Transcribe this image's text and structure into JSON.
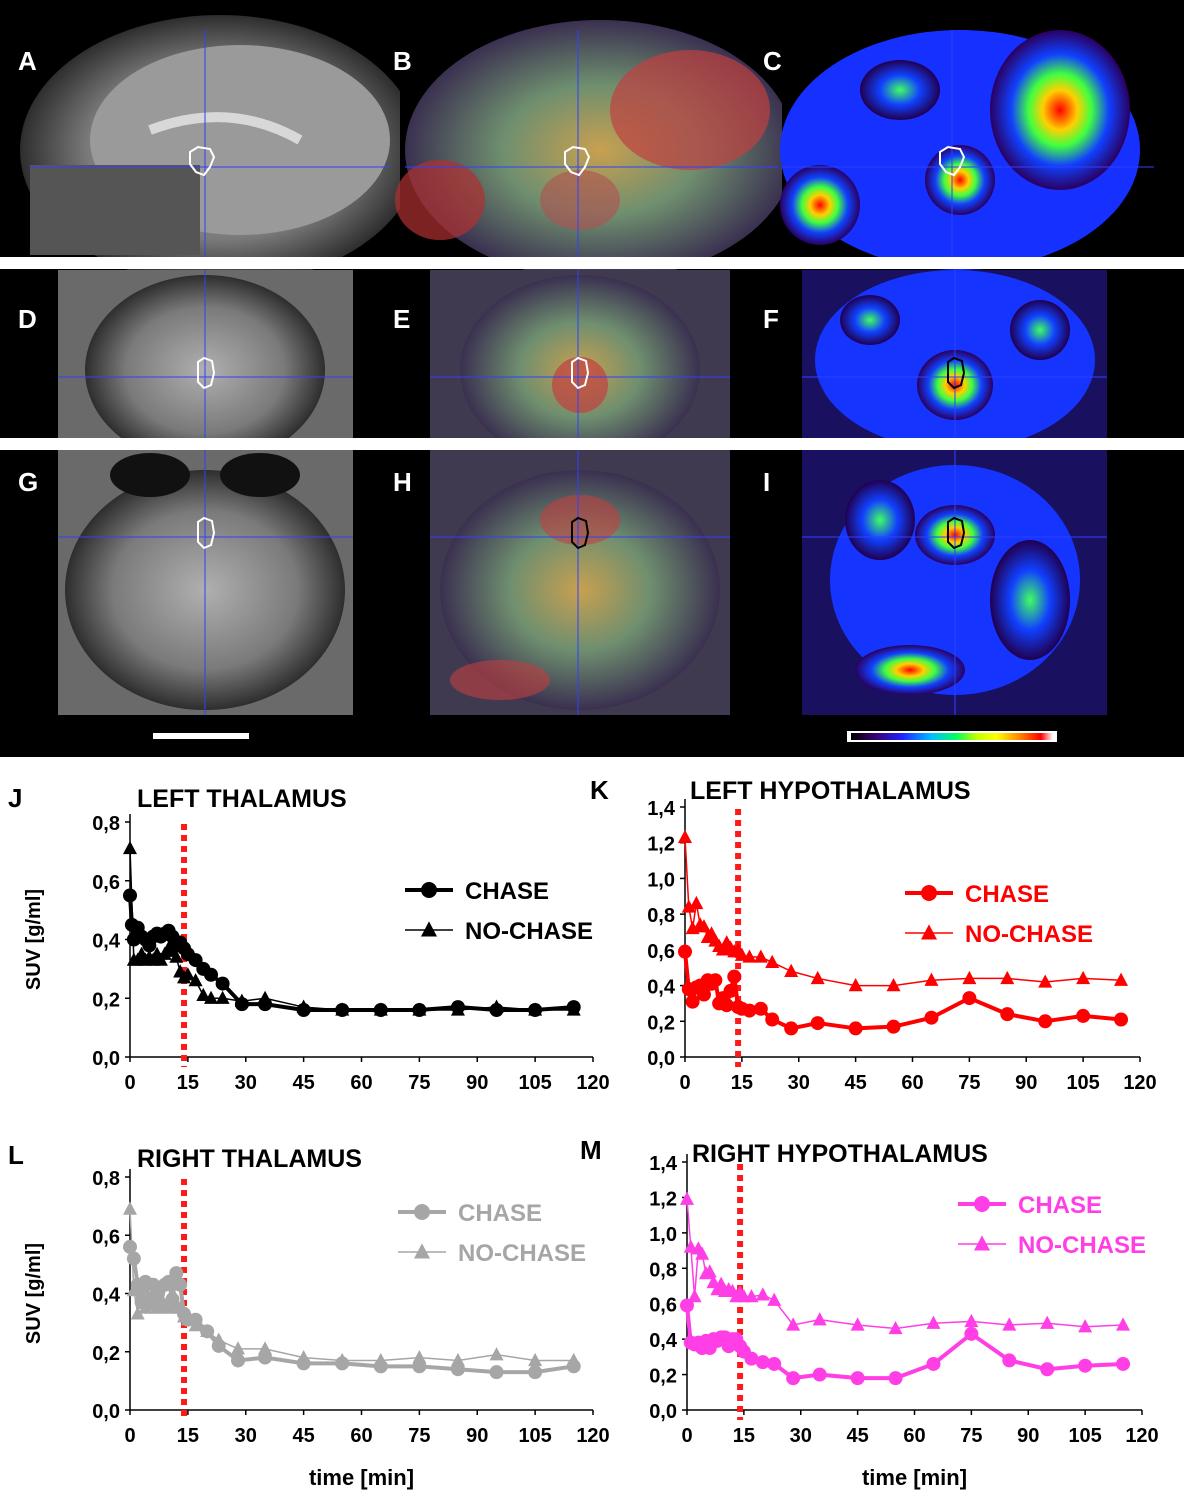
{
  "panel_labels": {
    "A": "A",
    "B": "B",
    "C": "C",
    "D": "D",
    "E": "E",
    "F": "F",
    "G": "G",
    "H": "H",
    "I": "I"
  },
  "colorbar_colors": [
    "#000000",
    "#3a0070",
    "#2020ff",
    "#00c0ff",
    "#00ff60",
    "#c0ff00",
    "#ffff00",
    "#ff8000",
    "#ff0000",
    "#ffffff"
  ],
  "chart_data": [
    {
      "panel": "J",
      "type": "line",
      "title": "LEFT THALAMUS",
      "ylabel": "SUV [g/ml]",
      "xlabel": "",
      "xlim": [
        0,
        120
      ],
      "ylim": [
        0,
        0.8
      ],
      "xticks": [
        "0",
        "15",
        "30",
        "45",
        "60",
        "75",
        "90",
        "105",
        "120"
      ],
      "yticks": [
        "0,0",
        "0,2",
        "0,4",
        "0,6",
        "0,8"
      ],
      "color": "#000000",
      "chase_x": 14,
      "legend": {
        "chase": "CHASE",
        "nochase": "NO-CHASE"
      },
      "series": [
        {
          "name": "CHASE",
          "marker": "circle",
          "x": [
            0,
            0.5,
            1,
            2,
            3,
            4,
            5,
            6,
            7,
            8,
            9,
            10,
            11,
            12,
            13,
            14,
            15,
            17,
            19,
            21,
            24,
            29,
            35,
            45,
            55,
            65,
            75,
            85,
            95,
            105,
            115
          ],
          "y": [
            0.55,
            0.45,
            0.4,
            0.44,
            0.41,
            0.4,
            0.38,
            0.41,
            0.42,
            0.41,
            0.42,
            0.43,
            0.41,
            0.38,
            0.39,
            0.37,
            0.35,
            0.33,
            0.3,
            0.28,
            0.25,
            0.18,
            0.18,
            0.16,
            0.16,
            0.16,
            0.16,
            0.17,
            0.16,
            0.16,
            0.17
          ]
        },
        {
          "name": "NO-CHASE",
          "marker": "triangle",
          "x": [
            0,
            1,
            2,
            3,
            4,
            5,
            6,
            7,
            8,
            9,
            10,
            11,
            12,
            13,
            14,
            15,
            17,
            19,
            21,
            24,
            29,
            35,
            45,
            55,
            65,
            75,
            85,
            95,
            105,
            115
          ],
          "y": [
            0.71,
            0.33,
            0.33,
            0.35,
            0.33,
            0.34,
            0.33,
            0.35,
            0.33,
            0.35,
            0.37,
            0.36,
            0.34,
            0.29,
            0.27,
            0.28,
            0.26,
            0.21,
            0.2,
            0.2,
            0.19,
            0.2,
            0.17,
            0.16,
            0.16,
            0.16,
            0.16,
            0.17,
            0.16,
            0.16
          ]
        }
      ]
    },
    {
      "panel": "K",
      "type": "line",
      "title": "LEFT HYPOTHALAMUS",
      "ylabel": "",
      "xlabel": "",
      "xlim": [
        0,
        120
      ],
      "ylim": [
        0,
        1.4
      ],
      "xticks": [
        "0",
        "15",
        "30",
        "45",
        "60",
        "75",
        "90",
        "105",
        "120"
      ],
      "yticks": [
        "0,0",
        "0,2",
        "0,4",
        "0,6",
        "0,8",
        "1,0",
        "1,2",
        "1,4"
      ],
      "color": "#ff0000",
      "chase_x": 14,
      "legend": {
        "chase": "CHASE",
        "nochase": "NO-CHASE"
      },
      "series": [
        {
          "name": "CHASE",
          "marker": "circle",
          "x": [
            0,
            1,
            2,
            3,
            4,
            5,
            6,
            7,
            8,
            9,
            10,
            11,
            12,
            13,
            14,
            15,
            17,
            20,
            23,
            28,
            35,
            45,
            55,
            65,
            75,
            85,
            95,
            105,
            115
          ],
          "y": [
            0.59,
            0.38,
            0.31,
            0.39,
            0.4,
            0.35,
            0.43,
            0.41,
            0.43,
            0.3,
            0.33,
            0.29,
            0.37,
            0.45,
            0.28,
            0.27,
            0.26,
            0.27,
            0.21,
            0.16,
            0.19,
            0.16,
            0.17,
            0.22,
            0.33,
            0.24,
            0.2,
            0.23,
            0.21
          ]
        },
        {
          "name": "NO-CHASE",
          "marker": "triangle",
          "x": [
            0,
            1,
            2,
            3,
            4,
            5,
            6,
            7,
            8,
            9,
            10,
            11,
            12,
            13,
            14,
            15,
            17,
            20,
            23,
            28,
            35,
            45,
            55,
            65,
            75,
            85,
            95,
            105,
            115
          ],
          "y": [
            1.23,
            0.84,
            0.72,
            0.86,
            0.74,
            0.73,
            0.67,
            0.69,
            0.65,
            0.62,
            0.6,
            0.64,
            0.61,
            0.59,
            0.6,
            0.57,
            0.56,
            0.56,
            0.53,
            0.48,
            0.44,
            0.4,
            0.4,
            0.43,
            0.44,
            0.44,
            0.42,
            0.44,
            0.43
          ]
        }
      ]
    },
    {
      "panel": "L",
      "type": "line",
      "title": "RIGHT THALAMUS",
      "ylabel": "SUV [g/ml]",
      "xlabel": "time [min]",
      "xlim": [
        0,
        120
      ],
      "ylim": [
        0,
        0.8
      ],
      "xticks": [
        "0",
        "15",
        "30",
        "45",
        "60",
        "75",
        "90",
        "105",
        "120"
      ],
      "yticks": [
        "0,0",
        "0,2",
        "0,4",
        "0,6",
        "0,8"
      ],
      "color": "#a6a6a6",
      "chase_x": 14,
      "legend": {
        "chase": "CHASE",
        "nochase": "NO-CHASE"
      },
      "series": [
        {
          "name": "CHASE",
          "marker": "circle",
          "x": [
            0,
            1,
            2,
            3,
            4,
            5,
            6,
            7,
            8,
            9,
            10,
            11,
            12,
            13,
            14,
            15,
            17,
            20,
            23,
            28,
            35,
            45,
            55,
            65,
            75,
            85,
            95,
            105,
            115
          ],
          "y": [
            0.56,
            0.52,
            0.43,
            0.37,
            0.44,
            0.37,
            0.43,
            0.4,
            0.36,
            0.43,
            0.44,
            0.38,
            0.47,
            0.43,
            0.33,
            0.31,
            0.31,
            0.27,
            0.22,
            0.17,
            0.18,
            0.16,
            0.16,
            0.15,
            0.15,
            0.14,
            0.13,
            0.13,
            0.15
          ]
        },
        {
          "name": "NO-CHASE",
          "marker": "triangle",
          "x": [
            0,
            1,
            2,
            3,
            4,
            5,
            6,
            7,
            8,
            9,
            10,
            11,
            12,
            13,
            14,
            15,
            17,
            20,
            23,
            28,
            35,
            45,
            55,
            65,
            75,
            85,
            95,
            105,
            115
          ],
          "y": [
            0.69,
            0.41,
            0.33,
            0.4,
            0.35,
            0.38,
            0.36,
            0.35,
            0.37,
            0.36,
            0.35,
            0.4,
            0.36,
            0.35,
            0.32,
            0.31,
            0.29,
            0.27,
            0.24,
            0.21,
            0.21,
            0.18,
            0.17,
            0.17,
            0.18,
            0.17,
            0.19,
            0.17,
            0.17
          ]
        }
      ]
    },
    {
      "panel": "M",
      "type": "line",
      "title": "RIGHT HYPOTHALAMUS",
      "ylabel": "",
      "xlabel": "time [min]",
      "xlim": [
        0,
        120
      ],
      "ylim": [
        0,
        1.4
      ],
      "xticks": [
        "0",
        "15",
        "30",
        "45",
        "60",
        "75",
        "90",
        "105",
        "120"
      ],
      "yticks": [
        "0,0",
        "0,2",
        "0,4",
        "0,6",
        "0,8",
        "1,0",
        "1,2",
        "1,4"
      ],
      "color": "#ff3ee6",
      "chase_x": 14,
      "legend": {
        "chase": "CHASE",
        "nochase": "NO-CHASE"
      },
      "series": [
        {
          "name": "CHASE",
          "marker": "circle",
          "x": [
            0,
            1,
            2,
            3,
            4,
            5,
            6,
            7,
            8,
            9,
            10,
            11,
            12,
            13,
            14,
            15,
            17,
            20,
            23,
            28,
            35,
            45,
            55,
            65,
            75,
            85,
            95,
            105,
            115
          ],
          "y": [
            0.59,
            0.38,
            0.37,
            0.38,
            0.35,
            0.39,
            0.35,
            0.4,
            0.39,
            0.41,
            0.41,
            0.36,
            0.4,
            0.4,
            0.36,
            0.33,
            0.29,
            0.27,
            0.26,
            0.18,
            0.2,
            0.18,
            0.18,
            0.26,
            0.43,
            0.28,
            0.23,
            0.25,
            0.26
          ]
        },
        {
          "name": "NO-CHASE",
          "marker": "triangle",
          "x": [
            0,
            1,
            2,
            3,
            4,
            5,
            6,
            7,
            8,
            9,
            10,
            11,
            12,
            13,
            14,
            15,
            17,
            20,
            23,
            28,
            35,
            45,
            55,
            65,
            75,
            85,
            95,
            105,
            115
          ],
          "y": [
            1.19,
            0.92,
            0.64,
            0.91,
            0.88,
            0.77,
            0.78,
            0.72,
            0.68,
            0.71,
            0.67,
            0.68,
            0.67,
            0.64,
            0.66,
            0.64,
            0.64,
            0.65,
            0.62,
            0.48,
            0.51,
            0.48,
            0.46,
            0.49,
            0.5,
            0.48,
            0.49,
            0.47,
            0.48
          ]
        }
      ]
    }
  ]
}
